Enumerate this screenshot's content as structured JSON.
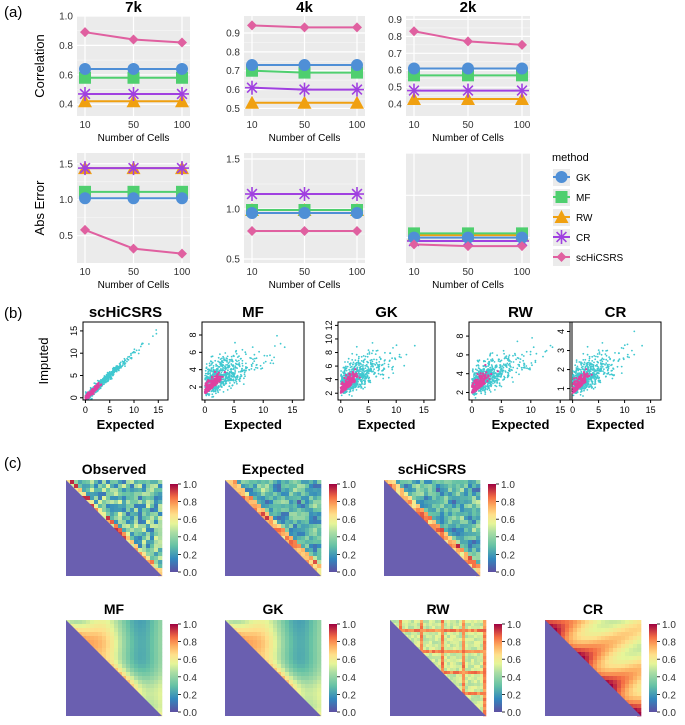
{
  "panel_labels": {
    "a": "(a)",
    "b": "(b)",
    "c": "(c)"
  },
  "colors": {
    "GK": "#4f8fd6",
    "MF": "#4fcf6f",
    "RW": "#f0a010",
    "CR": "#a040e0",
    "scHiCSRS": "#e060a0",
    "panel_bg": "#ebebeb",
    "scatter_cyan": "#40c8d0",
    "scatter_pink": "#e040a0",
    "heatmap_fill": "#6a5fb0"
  },
  "legend": {
    "title": "method",
    "entries": [
      {
        "name": "GK",
        "color": "#4f8fd6",
        "shape": "circle"
      },
      {
        "name": "MF",
        "color": "#4fcf6f",
        "shape": "square"
      },
      {
        "name": "RW",
        "color": "#f0a010",
        "shape": "triangle"
      },
      {
        "name": "CR",
        "color": "#a040e0",
        "shape": "asterisk"
      },
      {
        "name": "scHiCSRS",
        "color": "#e060a0",
        "shape": "diamond"
      }
    ]
  },
  "chart_data": [
    {
      "type": "line",
      "panel": "a",
      "row": "Correlation",
      "title": "7k",
      "xlabel": "Number of Cells",
      "ylabel": "Correlation",
      "categories": [
        "10",
        "50",
        "100"
      ],
      "ylim": [
        0.32,
        1.0
      ],
      "yticks": [
        0.4,
        0.6,
        0.8,
        1.0
      ],
      "ytick_labels": [
        "0.4",
        "0.6",
        "0.8",
        "1.0"
      ],
      "series": [
        {
          "name": "GK",
          "values": [
            0.64,
            0.64,
            0.64
          ]
        },
        {
          "name": "MF",
          "values": [
            0.58,
            0.58,
            0.58
          ]
        },
        {
          "name": "RW",
          "values": [
            0.42,
            0.42,
            0.42
          ]
        },
        {
          "name": "CR",
          "values": [
            0.47,
            0.47,
            0.47
          ]
        },
        {
          "name": "scHiCSRS",
          "values": [
            0.89,
            0.84,
            0.82
          ]
        }
      ]
    },
    {
      "type": "line",
      "panel": "a",
      "row": "Correlation",
      "title": "4k",
      "xlabel": "Number of Cells",
      "ylabel": "",
      "categories": [
        "10",
        "50",
        "100"
      ],
      "ylim": [
        0.46,
        0.99
      ],
      "yticks": [
        0.5,
        0.6,
        0.7,
        0.8,
        0.9
      ],
      "ytick_labels": [
        "0.5",
        "0.6",
        "0.7",
        "0.8",
        "0.9"
      ],
      "series": [
        {
          "name": "GK",
          "values": [
            0.73,
            0.73,
            0.73
          ]
        },
        {
          "name": "MF",
          "values": [
            0.7,
            0.69,
            0.69
          ]
        },
        {
          "name": "RW",
          "values": [
            0.53,
            0.53,
            0.53
          ]
        },
        {
          "name": "CR",
          "values": [
            0.61,
            0.6,
            0.6
          ]
        },
        {
          "name": "scHiCSRS",
          "values": [
            0.94,
            0.93,
            0.93
          ]
        }
      ]
    },
    {
      "type": "line",
      "panel": "a",
      "row": "Correlation",
      "title": "2k",
      "xlabel": "Number of Cells",
      "ylabel": "",
      "categories": [
        "10",
        "50",
        "100"
      ],
      "ylim": [
        0.33,
        0.92
      ],
      "yticks": [
        0.4,
        0.5,
        0.6,
        0.7,
        0.8,
        0.9
      ],
      "ytick_labels": [
        "0.4",
        "0.5",
        "0.6",
        "0.7",
        "0.8",
        "0.9"
      ],
      "series": [
        {
          "name": "GK",
          "values": [
            0.61,
            0.61,
            0.61
          ]
        },
        {
          "name": "MF",
          "values": [
            0.57,
            0.57,
            0.57
          ]
        },
        {
          "name": "RW",
          "values": [
            0.43,
            0.43,
            0.43
          ]
        },
        {
          "name": "CR",
          "values": [
            0.48,
            0.48,
            0.48
          ]
        },
        {
          "name": "scHiCSRS",
          "values": [
            0.83,
            0.77,
            0.75
          ]
        }
      ]
    },
    {
      "type": "line",
      "panel": "a",
      "row": "Abs Error",
      "title": "",
      "xlabel": "Number of Cells",
      "ylabel": "Abs Error",
      "categories": [
        "10",
        "50",
        "100"
      ],
      "ylim": [
        0.12,
        1.65
      ],
      "yticks": [
        0.5,
        1.0,
        1.5
      ],
      "ytick_labels": [
        "0.5",
        "1.0",
        "1.5"
      ],
      "series": [
        {
          "name": "GK",
          "values": [
            1.02,
            1.02,
            1.02
          ]
        },
        {
          "name": "MF",
          "values": [
            1.11,
            1.11,
            1.11
          ]
        },
        {
          "name": "RW",
          "values": [
            1.44,
            1.44,
            1.44
          ]
        },
        {
          "name": "CR",
          "values": [
            1.44,
            1.44,
            1.44
          ]
        },
        {
          "name": "scHiCSRS",
          "values": [
            0.58,
            0.32,
            0.25
          ]
        }
      ]
    },
    {
      "type": "line",
      "panel": "a",
      "row": "Abs Error",
      "title": "",
      "xlabel": "Number of Cells",
      "ylabel": "",
      "categories": [
        "10",
        "50",
        "100"
      ],
      "ylim": [
        0.46,
        1.56
      ],
      "yticks": [
        0.5,
        1.0,
        1.5
      ],
      "ytick_labels": [
        "0.5",
        "1.0",
        "1.5"
      ],
      "series": [
        {
          "name": "GK",
          "values": [
            0.96,
            0.96,
            0.96
          ]
        },
        {
          "name": "MF",
          "values": [
            0.99,
            0.99,
            0.99
          ]
        },
        {
          "name": "RW",
          "values": [
            0.99,
            0.99,
            0.99
          ]
        },
        {
          "name": "CR",
          "values": [
            1.15,
            1.15,
            1.15
          ]
        },
        {
          "name": "scHiCSRS",
          "values": [
            0.78,
            0.78,
            0.78
          ]
        }
      ]
    },
    {
      "type": "line",
      "panel": "a",
      "row": "Abs Error",
      "title": "",
      "xlabel": "Number of Cells",
      "ylabel": "",
      "categories": [
        "10",
        "50",
        "100"
      ],
      "ylim": [
        0.2,
        1.5
      ],
      "yticks": [],
      "ytick_labels": [],
      "series": [
        {
          "name": "GK",
          "values": [
            0.5,
            0.5,
            0.5
          ]
        },
        {
          "name": "MF",
          "values": [
            0.55,
            0.55,
            0.55
          ]
        },
        {
          "name": "RW",
          "values": [
            0.53,
            0.53,
            0.53
          ]
        },
        {
          "name": "CR",
          "values": [
            0.46,
            0.46,
            0.46
          ]
        },
        {
          "name": "scHiCSRS",
          "values": [
            0.42,
            0.4,
            0.4
          ]
        }
      ]
    },
    {
      "type": "scatter",
      "panel": "b",
      "title": "scHiCSRS",
      "xlabel": "Expected",
      "ylabel": "Imputed",
      "xlim": [
        -0.5,
        17
      ],
      "ylim": [
        -0.5,
        17
      ],
      "xticks": [
        0,
        5,
        10,
        15
      ],
      "yticks": [
        0,
        5,
        10,
        15
      ],
      "description": "points tightly along y = x"
    },
    {
      "type": "scatter",
      "panel": "b",
      "title": "MF",
      "xlabel": "Expected",
      "ylabel": "",
      "xlim": [
        -0.5,
        17
      ],
      "ylim": [
        0.5,
        9.5
      ],
      "xticks": [
        0,
        5,
        10,
        15
      ],
      "yticks": [
        2,
        4,
        6,
        8
      ]
    },
    {
      "type": "scatter",
      "panel": "b",
      "title": "GK",
      "xlabel": "Expected",
      "ylabel": "",
      "xlim": [
        -0.5,
        17
      ],
      "ylim": [
        1,
        12.5
      ],
      "xticks": [
        0,
        5,
        10,
        15
      ],
      "yticks": [
        2,
        4,
        6,
        8,
        10,
        12
      ]
    },
    {
      "type": "scatter",
      "panel": "b",
      "title": "RW",
      "xlabel": "Expected",
      "ylabel": "",
      "xlim": [
        -0.5,
        17
      ],
      "ylim": [
        1.2,
        9.5
      ],
      "xticks": [
        0,
        5,
        10,
        15
      ],
      "yticks": [
        2,
        4,
        6,
        8
      ]
    },
    {
      "type": "scatter",
      "panel": "b",
      "title": "CR",
      "xlabel": "Expected",
      "ylabel": "",
      "xlim": [
        -0.5,
        17
      ],
      "ylim": [
        0.4,
        4.5
      ],
      "xticks": [
        0,
        5,
        10,
        15
      ],
      "yticks": [
        1,
        2,
        3,
        4
      ]
    },
    {
      "type": "heatmap",
      "panel": "c",
      "title": "Observed",
      "colorbar_ticks": [
        "1.0",
        "0.8",
        "0.6",
        "0.4",
        "0.2",
        "0.0"
      ],
      "style": "noisy"
    },
    {
      "type": "heatmap",
      "panel": "c",
      "title": "Expected",
      "colorbar_ticks": [
        "1.0",
        "0.8",
        "0.6",
        "0.4",
        "0.2",
        "0.0"
      ],
      "style": "mixed"
    },
    {
      "type": "heatmap",
      "panel": "c",
      "title": "scHiCSRS",
      "colorbar_ticks": [
        "1.0",
        "0.8",
        "0.6",
        "0.4",
        "0.2",
        "0.0"
      ],
      "style": "mixed"
    },
    {
      "type": "heatmap",
      "panel": "c",
      "title": "MF",
      "colorbar_ticks": [
        "1.0",
        "0.8",
        "0.6",
        "0.4",
        "0.2",
        "0.0"
      ],
      "style": "smooth"
    },
    {
      "type": "heatmap",
      "panel": "c",
      "title": "GK",
      "colorbar_ticks": [
        "1.0",
        "0.8",
        "0.6",
        "0.4",
        "0.2",
        "0.0"
      ],
      "style": "smooth"
    },
    {
      "type": "heatmap",
      "panel": "c",
      "title": "RW",
      "colorbar_ticks": [
        "1.0",
        "0.8",
        "0.6",
        "0.4",
        "0.2",
        "0.0"
      ],
      "style": "grid"
    },
    {
      "type": "heatmap",
      "panel": "c",
      "title": "CR",
      "colorbar_ticks": [
        "1.0",
        "0.8",
        "0.6",
        "0.4",
        "0.2",
        "0.0"
      ],
      "style": "warm"
    }
  ]
}
